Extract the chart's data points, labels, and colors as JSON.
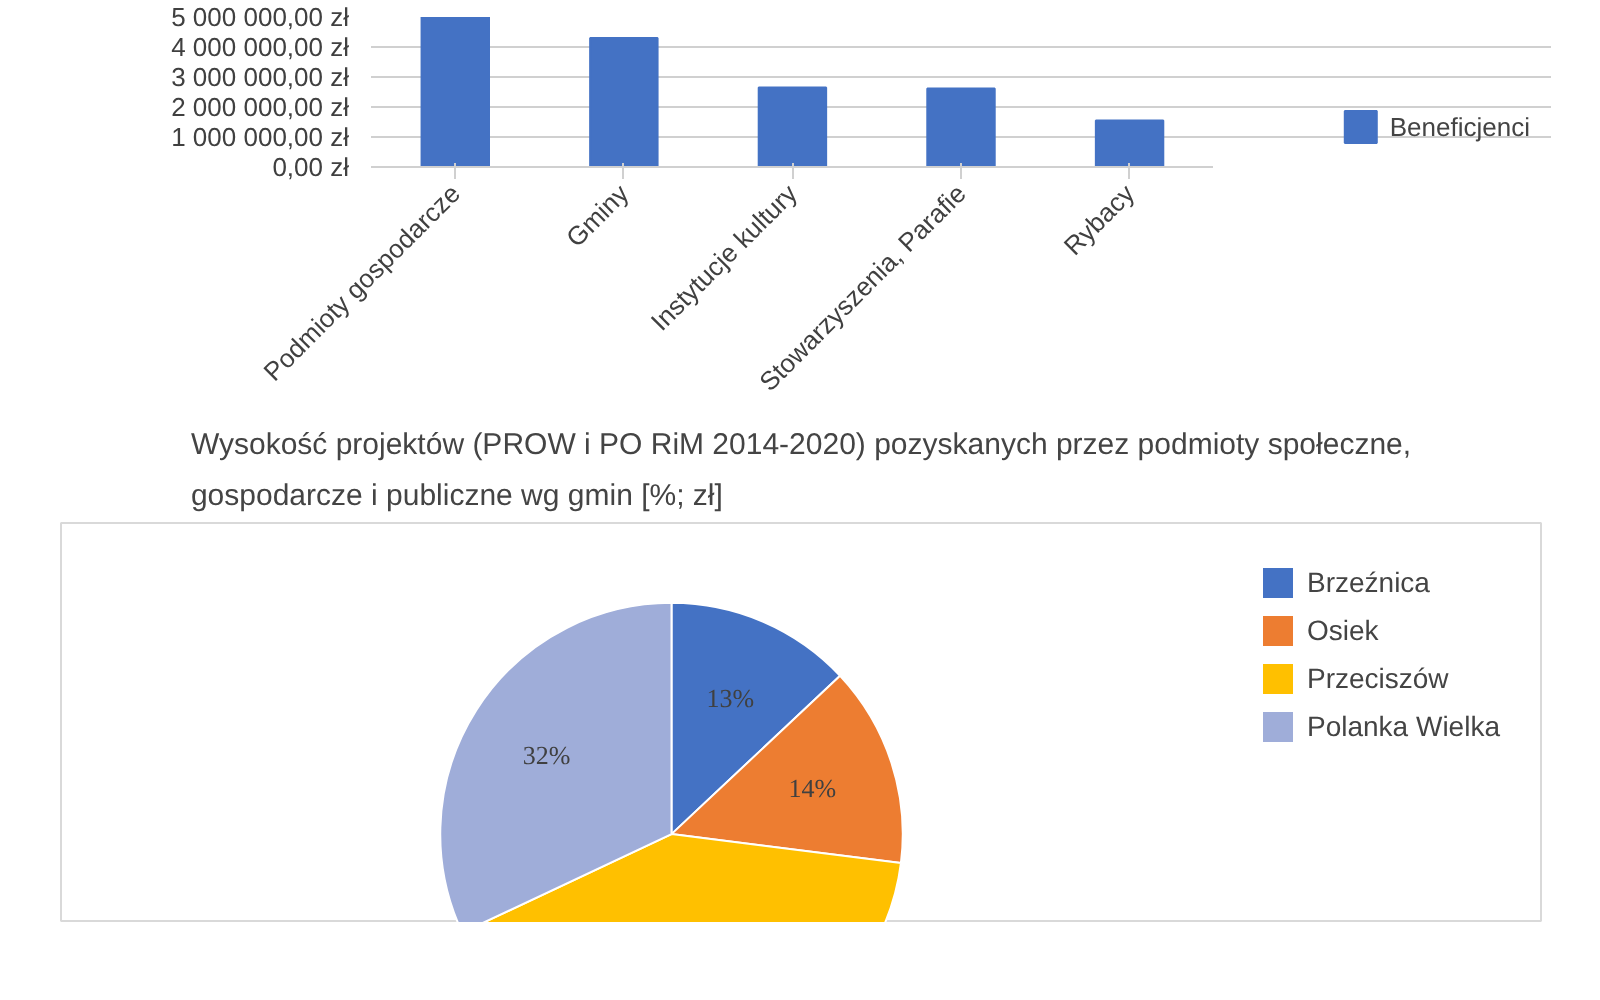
{
  "chart_data": [
    {
      "type": "bar",
      "categories": [
        "Podmioty gospodarcze",
        "Gminy",
        "Instytucje kultury",
        "Stowarzyszenia, Parafie",
        "Rybacy"
      ],
      "series": [
        {
          "name": "Beneficjenci",
          "color": "#4472c4",
          "values": [
            5000000,
            4300000,
            2650000,
            2620000,
            1550000
          ]
        }
      ],
      "ylim": [
        0,
        5000000
      ],
      "yticks": [
        {
          "value": 0,
          "label": "0,00 zł"
        },
        {
          "value": 1000000,
          "label": "1 000 000,00 zł"
        },
        {
          "value": 2000000,
          "label": "2 000 000,00 zł"
        },
        {
          "value": 3000000,
          "label": "3 000 000,00 zł"
        },
        {
          "value": 4000000,
          "label": "4 000 000,00 zł"
        },
        {
          "value": 5000000,
          "label": "5 000 000,00 zł"
        }
      ],
      "grid": "y",
      "legend": "right"
    },
    {
      "type": "pie",
      "title": "Wysokość projektów (PROW i PO RiM 2014-2020) pozyskanych przez podmioty społeczne,\ngospodarcze i publiczne wg gmin [%; zł]",
      "categories": [
        "Brzeźnica",
        "Osiek",
        "Przeciszów",
        "Polanka Wielka"
      ],
      "values": [
        13,
        14,
        41,
        32
      ],
      "colors": [
        "#4472c4",
        "#ed7d31",
        "#ffc000",
        "#9fadd9"
      ],
      "value_labels": [
        "13%",
        "14%",
        null,
        "32%"
      ],
      "legend": "right"
    }
  ]
}
